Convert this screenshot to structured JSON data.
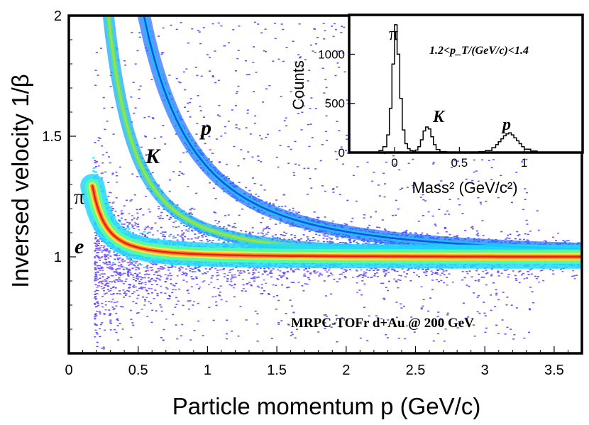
{
  "chart_data": [
    {
      "type": "heatmap",
      "xlabel": "Particle momentum p (GeV/c)",
      "ylabel": "Inversed velocity 1/β",
      "xlim": [
        0,
        3.7
      ],
      "ylim": [
        0.6,
        2.0
      ],
      "xticks": [
        "0",
        "0.5",
        "1",
        "1.5",
        "2",
        "2.5",
        "3",
        "3.5"
      ],
      "yticks": [
        "1",
        "1.5",
        "2"
      ],
      "annotation": "MRPC-TOFr d+Au @ 200 GeV",
      "band_labels": [
        {
          "text": "π",
          "x": 0.08,
          "y": 1.25
        },
        {
          "text": "e",
          "x": 0.08,
          "y": 1.03
        },
        {
          "text": "K",
          "x": 0.6,
          "y": 1.41
        },
        {
          "text": "p",
          "x": 1.0,
          "y": 1.53
        }
      ],
      "bands": [
        {
          "particle": "e",
          "mass_gev": 0.000511
        },
        {
          "particle": "π",
          "mass_gev": 0.1396
        },
        {
          "particle": "K",
          "mass_gev": 0.4937
        },
        {
          "particle": "p",
          "mass_gev": 0.9383
        }
      ],
      "grid": false
    },
    {
      "type": "line",
      "title": "1.2<p_T/(GeV/c)<1.4",
      "xlabel": "Mass² (GeV/c²)",
      "ylabel": "Counts",
      "xlim": [
        -0.35,
        1.45
      ],
      "ylim": [
        0,
        1400
      ],
      "xticks": [
        "0",
        "0.5",
        "1"
      ],
      "yticks": [
        "0",
        "500",
        "1000"
      ],
      "peak_labels": [
        {
          "text": "π",
          "x": -0.1,
          "y": 1000
        },
        {
          "text": "K",
          "x": 0.29,
          "y": 290
        },
        {
          "text": "p",
          "x": 0.85,
          "y": 230
        }
      ],
      "x": [
        -0.35,
        -0.3,
        -0.25,
        -0.2,
        -0.15,
        -0.12,
        -0.09,
        -0.06,
        -0.04,
        -0.02,
        0.0,
        0.02,
        0.04,
        0.06,
        0.08,
        0.1,
        0.12,
        0.14,
        0.16,
        0.18,
        0.2,
        0.22,
        0.24,
        0.26,
        0.28,
        0.3,
        0.32,
        0.35,
        0.4,
        0.45,
        0.5,
        0.55,
        0.6,
        0.65,
        0.7,
        0.75,
        0.78,
        0.8,
        0.82,
        0.84,
        0.86,
        0.88,
        0.9,
        0.92,
        0.94,
        0.96,
        0.98,
        1.0,
        1.05,
        1.1,
        1.2,
        1.3,
        1.45
      ],
      "values": [
        0,
        0,
        0,
        0,
        5,
        20,
        60,
        180,
        450,
        900,
        1300,
        1000,
        550,
        230,
        90,
        40,
        20,
        15,
        25,
        60,
        130,
        220,
        260,
        240,
        160,
        80,
        30,
        10,
        5,
        3,
        2,
        3,
        5,
        10,
        20,
        50,
        80,
        110,
        140,
        170,
        190,
        200,
        180,
        150,
        120,
        90,
        60,
        35,
        15,
        5,
        2,
        0,
        0
      ]
    }
  ]
}
